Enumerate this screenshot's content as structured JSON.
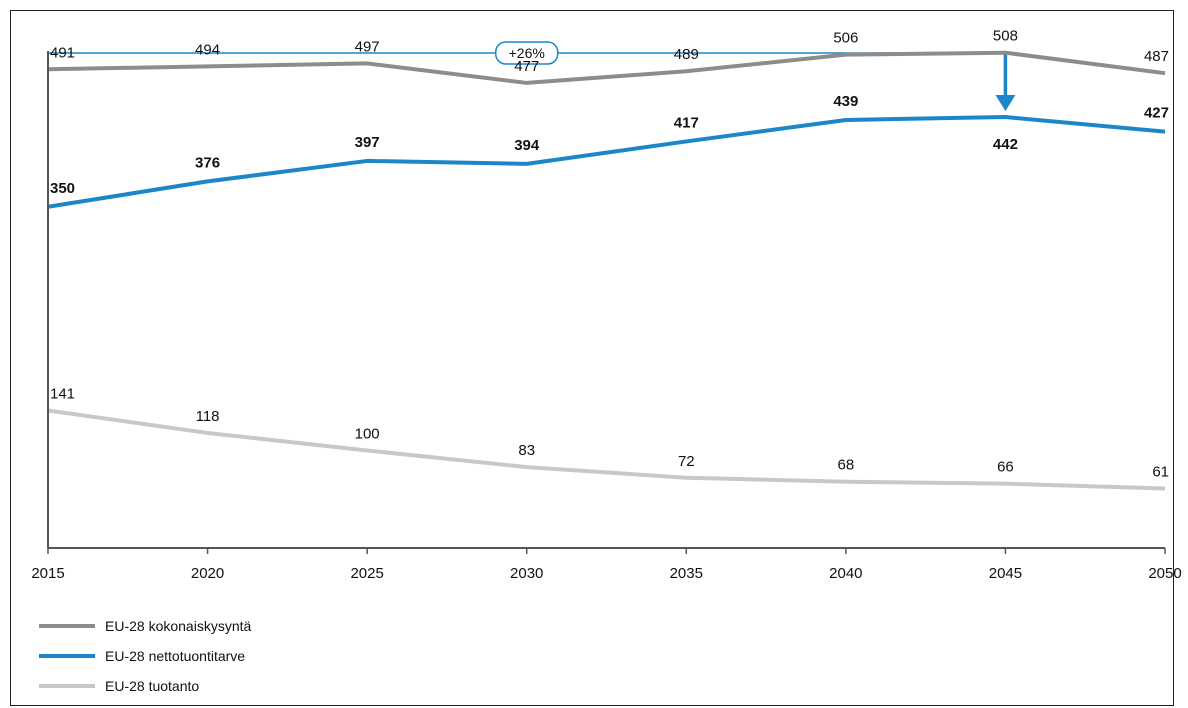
{
  "chart_data": {
    "type": "line",
    "x": [
      2015,
      2020,
      2025,
      2030,
      2035,
      2040,
      2045,
      2050
    ],
    "series": [
      {
        "name": "EU-28 kokonaiskysyntä",
        "values": [
          491,
          494,
          497,
          477,
          489,
          506,
          508,
          487
        ],
        "labels": [
          "491",
          "494",
          "497",
          "477",
          "489",
          "506",
          "508",
          "487"
        ],
        "color": "#8c8c8c",
        "bold_labels": false
      },
      {
        "name": "EU-28 nettotuontitarve",
        "values": [
          350,
          376,
          397,
          394,
          417,
          439,
          442,
          427
        ],
        "labels": [
          "350",
          "376",
          "397",
          "394",
          "417",
          "439",
          "442",
          "427"
        ],
        "color": "#1b87c9",
        "bold_labels": true
      },
      {
        "name": "EU-28 tuotanto",
        "values": [
          141,
          118,
          100,
          83,
          72,
          68,
          66,
          61
        ],
        "labels": [
          "141",
          "118",
          "100",
          "83",
          "72",
          "68",
          "66",
          "61"
        ],
        "color": "#c8c8c8",
        "bold_labels": false
      }
    ],
    "x_tick_labels": [
      "2015",
      "2020",
      "2025",
      "2030",
      "2035",
      "2040",
      "2045",
      "2050"
    ],
    "ylim": [
      0,
      520
    ],
    "grid": false,
    "legend_position": "bottom-left",
    "annotation": {
      "text": "+26%",
      "from_x": 2015,
      "to_x": 2045,
      "color": "#1b87c9"
    }
  }
}
